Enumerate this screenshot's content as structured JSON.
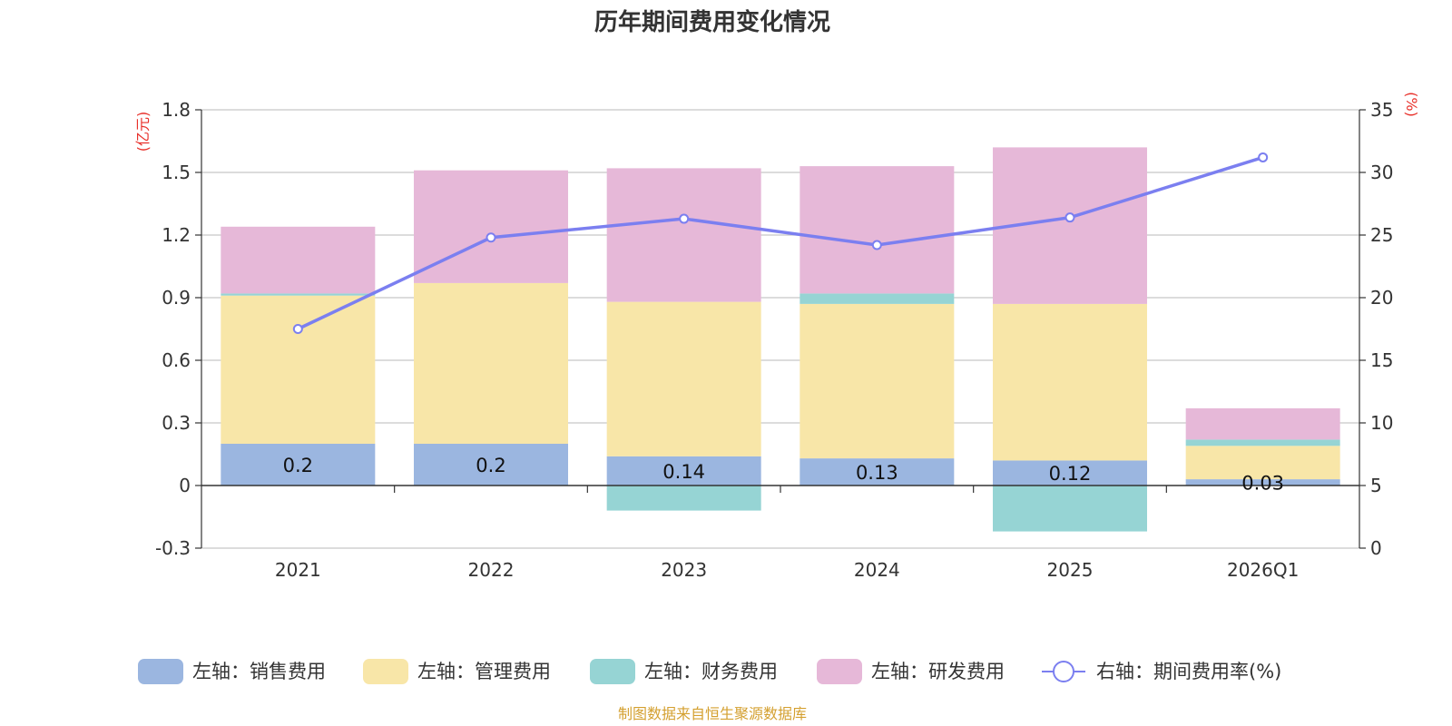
{
  "chart_data": {
    "type": "bar",
    "title": "历年期间费用变化情况",
    "categories": [
      "2021",
      "2022",
      "2023",
      "2024",
      "2025",
      "2026Q1"
    ],
    "left_axis": {
      "unit": "(亿元)",
      "ylim": [
        -0.3,
        1.8
      ],
      "ticks": [
        "-0.3",
        "0",
        "0.3",
        "0.6",
        "0.9",
        "1.2",
        "1.5",
        "1.8"
      ]
    },
    "right_axis": {
      "unit": "(%)",
      "ylim": [
        0,
        35
      ],
      "ticks": [
        "0",
        "5",
        "10",
        "15",
        "20",
        "25",
        "30",
        "35"
      ]
    },
    "series": [
      {
        "name": "左轴：销售费用",
        "axis": "left",
        "color": "#9bb6e0",
        "values": [
          0.2,
          0.2,
          0.14,
          0.13,
          0.12,
          0.03
        ],
        "data_labels": [
          "0.2",
          "0.2",
          "0.14",
          "0.13",
          "0.12",
          "0.03"
        ]
      },
      {
        "name": "左轴：管理费用",
        "axis": "left",
        "color": "#f8e6a8",
        "values": [
          0.71,
          0.77,
          0.74,
          0.74,
          0.75,
          0.16
        ]
      },
      {
        "name": "左轴：财务费用",
        "axis": "left",
        "color": "#96d4d4",
        "values": [
          0.01,
          0.0,
          -0.12,
          0.05,
          -0.22,
          0.03
        ]
      },
      {
        "name": "左轴：研发费用",
        "axis": "left",
        "color": "#e6b8d8",
        "values": [
          0.32,
          0.54,
          0.64,
          0.61,
          0.75,
          0.15
        ]
      },
      {
        "name": "右轴：期间费用率(%)",
        "axis": "right",
        "type": "line",
        "color": "#7b7ff0",
        "values": [
          17.5,
          24.8,
          26.3,
          24.2,
          26.4,
          31.2
        ]
      }
    ],
    "grid": true,
    "legend_position": "bottom"
  },
  "source_text": "制图数据来自恒生聚源数据库",
  "colors": {
    "axis_unit": "#e8302a",
    "source": "#d4a030",
    "grid": "#c8c8c8",
    "axis": "#333333"
  }
}
